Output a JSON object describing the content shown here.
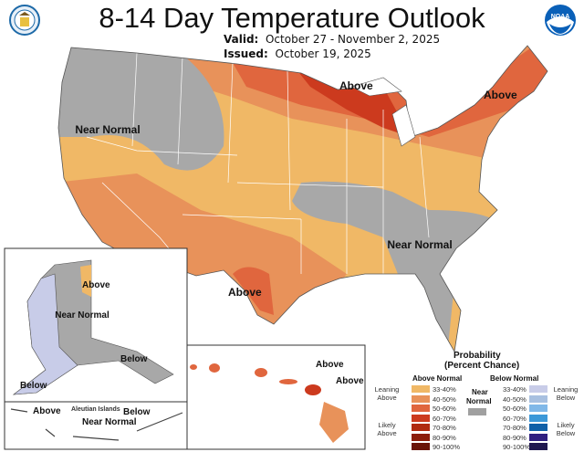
{
  "header": {
    "title": "8-14 Day Temperature Outlook",
    "valid_label": "Valid:",
    "valid_value": "October 27 - November 2, 2025",
    "issued_label": "Issued:",
    "issued_value": "October 19, 2025"
  },
  "logos": {
    "left": "department-of-commerce-seal",
    "right": "noaa-logo",
    "right_text": "NOAA"
  },
  "map_labels": {
    "nw": "Near Normal",
    "great_lakes": "Above",
    "northeast": "Above",
    "southeast": "Near Normal",
    "texas": "Above"
  },
  "alaska": {
    "above": "Above",
    "near": "Near Normal",
    "below_se": "Below",
    "below_sw": "Below"
  },
  "aleutians": {
    "above": "Above",
    "title": "Aleutian Islands",
    "near": "Near Normal",
    "below": "Below"
  },
  "hawaii": {
    "above1": "Above",
    "above2": "Above"
  },
  "legend": {
    "title1": "Probability",
    "title2": "(Percent Chance)",
    "above_header": "Above Normal",
    "below_header": "Below Normal",
    "near_header1": "Near",
    "near_header2": "Normal",
    "leaning_above": "Leaning Above",
    "likely_above": "Likely Above",
    "leaning_below": "Leaning Below",
    "likely_below": "Likely Below",
    "ranges": [
      "33-40%",
      "40-50%",
      "50-60%",
      "60-70%",
      "70-80%",
      "80-90%",
      "90-100%"
    ],
    "above_colors": [
      "#f0b866",
      "#e8925a",
      "#e0663e",
      "#cc3a1e",
      "#b02a10",
      "#8c1e0c",
      "#6a1408"
    ],
    "below_colors": [
      "#c8cce8",
      "#a8c0e0",
      "#80b8e8",
      "#3c98d8",
      "#1060a8",
      "#302080",
      "#201850"
    ],
    "near_color": "#a0a0a0"
  }
}
